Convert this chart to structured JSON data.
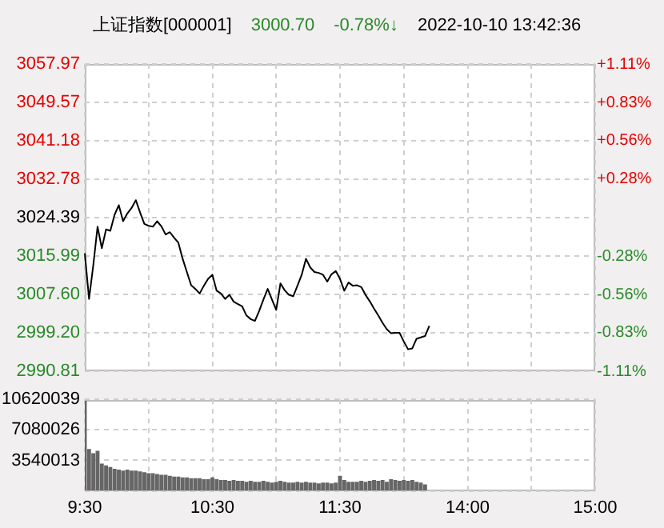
{
  "chart_data": [
    {
      "type": "line",
      "title": "上证指数[000001]",
      "annotations": [
        "3000.70",
        "-0.78%↓",
        "2022-10-10 13:42:36"
      ],
      "categories": [
        null,
        null,
        null,
        null,
        null,
        null,
        null,
        null,
        null,
        null,
        null,
        null,
        null,
        null,
        null,
        null,
        null,
        null,
        null,
        null,
        null,
        null,
        null,
        null,
        null,
        null,
        null,
        null,
        null,
        null,
        null,
        null,
        null,
        null,
        null,
        null,
        null,
        null,
        null,
        null,
        null,
        null,
        null,
        null,
        null,
        null,
        null,
        null,
        null,
        null,
        null,
        null,
        null,
        null,
        null,
        null,
        null,
        null,
        null,
        null,
        null,
        null,
        null,
        null,
        null,
        null,
        null,
        null,
        null,
        null,
        null,
        null,
        null,
        null,
        null,
        null,
        null,
        null,
        null,
        null,
        null,
        null,
        null,
        null,
        null,
        null,
        null,
        null,
        null,
        null,
        null,
        null,
        null,
        null,
        null,
        null,
        null,
        null,
        null,
        null,
        null,
        null,
        null,
        null,
        null,
        null,
        null,
        null,
        null,
        null,
        null,
        null,
        null,
        null,
        null,
        null,
        null,
        null,
        null,
        null,
        null
      ],
      "tick_labels": "y",
      "ylim": [
        2990.81,
        3057.97
      ],
      "yticks": [
        2990.81,
        {
          "value": 2999.2,
          "label": "2999.20"
        },
        {
          "value": 3007.6,
          "label": "3007.60"
        },
        3015.99,
        3024.39,
        3032.78,
        3041.18,
        3049.57,
        3057.97
      ],
      "y2lim": [
        -1.11,
        1.11
      ],
      "y2ticks": [
        {
          "value": -1.11,
          "label": "-1.11%"
        },
        {
          "value": -0.83,
          "label": "-0.83%"
        },
        {
          "value": -0.56,
          "label": "-0.56%"
        },
        {
          "value": -0.28,
          "label": "-0.28%"
        },
        {
          "value": 0,
          "label": null
        },
        {
          "value": 0.28,
          "label": "+0.28%"
        },
        {
          "value": 0.56,
          "label": "+0.56%"
        },
        {
          "value": 0.83,
          "label": "+0.83%"
        },
        {
          "value": 1.11,
          "label": "+1.11%"
        }
      ],
      "grid": true,
      "legend": false,
      "series": [
        {
          "color": "#000000",
          "values": [
            3016.6,
            3006.6,
            3014.0,
            3022.4,
            3017.7,
            3021.8,
            3021.5,
            3025.0,
            3027.1,
            3023.6,
            3025.3,
            3026.5,
            3028.2,
            3025.5,
            3023.0,
            3022.6,
            3022.4,
            3023.6,
            3022.5,
            3020.7,
            3021.2,
            3020.0,
            3018.9,
            3015.4,
            3012.5,
            3009.6,
            3008.8,
            3007.8,
            3009.5,
            3011.0,
            3011.9,
            3008.4,
            3007.8,
            3006.6,
            3007.5,
            3006.0,
            3005.5,
            3005.0,
            3003.0,
            3002.2,
            3001.8,
            3004.0,
            3006.5,
            3008.8,
            3006.5,
            3004.2,
            3010.0,
            3008.5,
            3007.5,
            3007.2,
            3009.5,
            3011.9,
            3015.4,
            3013.5,
            3012.5,
            3012.3,
            3011.9,
            3010.4,
            3012.0,
            3012.7,
            3011.0,
            3008.4,
            3010.2,
            3009.5,
            3009.6,
            3009.2,
            3007.5,
            3006.1,
            3004.5,
            3003.0,
            3001.4,
            3000.0,
            2999.1,
            2999.2,
            2999.2,
            2997.3,
            2995.6,
            2995.8,
            2997.9,
            2998.2,
            2998.5,
            3000.7,
            null,
            null,
            null,
            null,
            null,
            null,
            null,
            null,
            null,
            null,
            null,
            null,
            null,
            null,
            null,
            null,
            null,
            null,
            null,
            null,
            null,
            null,
            null,
            null,
            null,
            null,
            null,
            null,
            null,
            null,
            null,
            null,
            null,
            null,
            null,
            null,
            null,
            null,
            null
          ]
        }
      ]
    },
    {
      "type": "bar",
      "categories": [
        "9:30",
        null,
        null,
        null,
        null,
        null,
        null,
        null,
        null,
        null,
        null,
        null,
        null,
        null,
        null,
        null,
        null,
        null,
        null,
        null,
        null,
        null,
        null,
        null,
        null,
        null,
        null,
        null,
        null,
        null,
        "10:30",
        null,
        null,
        null,
        null,
        null,
        null,
        null,
        null,
        null,
        null,
        null,
        null,
        null,
        null,
        null,
        null,
        null,
        null,
        null,
        null,
        null,
        null,
        null,
        null,
        null,
        null,
        null,
        null,
        null,
        "11:30",
        null,
        null,
        null,
        null,
        null,
        null,
        null,
        null,
        null,
        null,
        null,
        null,
        null,
        null,
        null,
        null,
        null,
        null,
        null,
        null,
        null,
        null,
        null,
        null,
        null,
        null,
        null,
        null,
        null,
        "14:00",
        null,
        null,
        null,
        null,
        null,
        null,
        null,
        null,
        null,
        null,
        null,
        null,
        null,
        null,
        null,
        null,
        null,
        null,
        null,
        null,
        null,
        null,
        null,
        null,
        null,
        null,
        null,
        null,
        null,
        "15:00"
      ],
      "ylim": [
        0,
        10620039
      ],
      "yticks": [
        {
          "value": 0,
          "label": null
        },
        3540013,
        7080026,
        10620039
      ],
      "grid": true,
      "legend": false,
      "color": "#666666",
      "values": [
        10400000,
        4800000,
        4300000,
        4600000,
        3100000,
        2900000,
        2700000,
        2500000,
        2400000,
        2300000,
        2400000,
        2300000,
        2300000,
        2200000,
        2100000,
        2000000,
        2000000,
        1900000,
        1800000,
        1800000,
        1700000,
        1600000,
        1600000,
        1500000,
        1500000,
        1400000,
        1400000,
        1400000,
        1300000,
        1300000,
        1500000,
        1300000,
        1200000,
        1200000,
        1100000,
        1200000,
        1100000,
        1100000,
        1000000,
        1100000,
        1000000,
        1000000,
        1100000,
        1000000,
        900000,
        1000000,
        1100000,
        1000000,
        900000,
        900000,
        1000000,
        900000,
        1000000,
        900000,
        900000,
        800000,
        900000,
        900000,
        800000,
        900000,
        1700000,
        1200000,
        1000000,
        1000000,
        1000000,
        1100000,
        1000000,
        1100000,
        1200000,
        1100000,
        1200000,
        1000000,
        1300000,
        1200000,
        1100000,
        1200000,
        1100000,
        1200000,
        1000000,
        900000,
        700000,
        null,
        null,
        null,
        null,
        null,
        null,
        null,
        null,
        null,
        null,
        null,
        null,
        null,
        null,
        null,
        null,
        null,
        null,
        null,
        null,
        null,
        null,
        null,
        null,
        null,
        null,
        null,
        null,
        null,
        null,
        null,
        null,
        null,
        null,
        null,
        null,
        null,
        null,
        null,
        null
      ]
    }
  ]
}
